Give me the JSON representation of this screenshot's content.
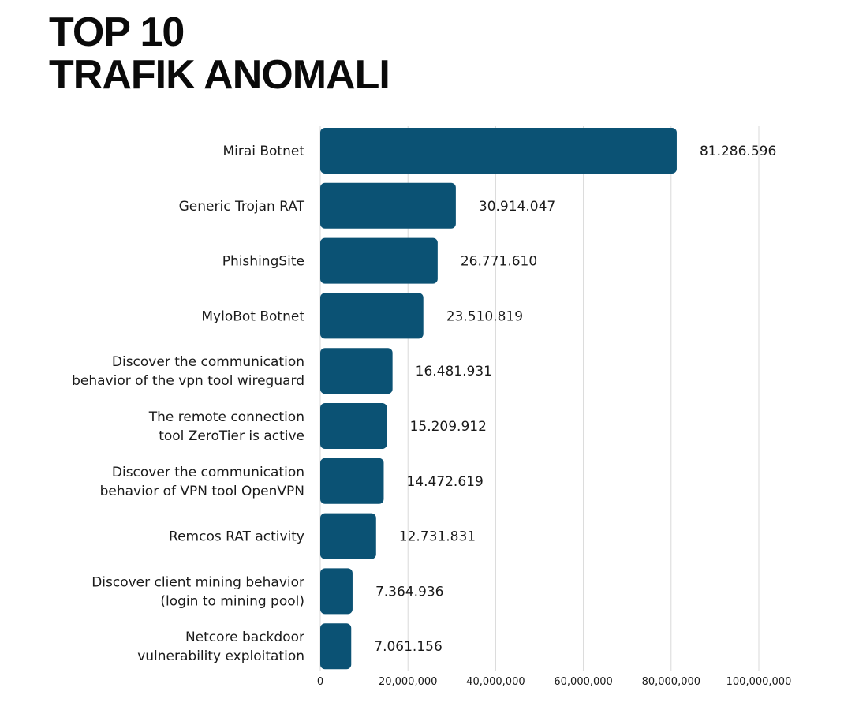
{
  "title": {
    "line1": "TOP 10",
    "line2": "TRAFIK ANOMALI"
  },
  "colors": {
    "bar": "#0b5274",
    "grid": "#d9d9d9",
    "text": "#1a1a1a"
  },
  "chart_data": {
    "type": "bar",
    "orientation": "horizontal",
    "categories": [
      [
        "Mirai Botnet"
      ],
      [
        "Generic Trojan RAT"
      ],
      [
        "PhishingSite"
      ],
      [
        "MyloBot Botnet"
      ],
      [
        "Discover the communication",
        "behavior of the vpn tool wireguard"
      ],
      [
        "The remote connection",
        "tool ZeroTier is active"
      ],
      [
        "Discover the communication",
        "behavior of VPN tool OpenVPN"
      ],
      [
        "Remcos RAT activity"
      ],
      [
        "Discover client mining behavior",
        "(login to mining pool)"
      ],
      [
        "Netcore backdoor",
        "vulnerability exploitation"
      ]
    ],
    "values": [
      81286596,
      30914047,
      26771610,
      23510819,
      16481931,
      15209912,
      14472619,
      12731831,
      7364936,
      7061156
    ],
    "value_labels": [
      "81.286.596",
      "30.914.047",
      "26.771.610",
      "23.510.819",
      "16.481.931",
      "15.209.912",
      "14.472.619",
      "12.731.831",
      "7.364.936",
      "7.061.156"
    ],
    "x_ticks": [
      0,
      20000000,
      40000000,
      60000000,
      80000000,
      100000000
    ],
    "x_tick_labels": [
      "0",
      "20,000,000",
      "40,000,000",
      "60,000,000",
      "80,000,000",
      "100,000,000"
    ],
    "xlim": [
      0,
      100000000
    ],
    "grid": true,
    "legend": false
  }
}
